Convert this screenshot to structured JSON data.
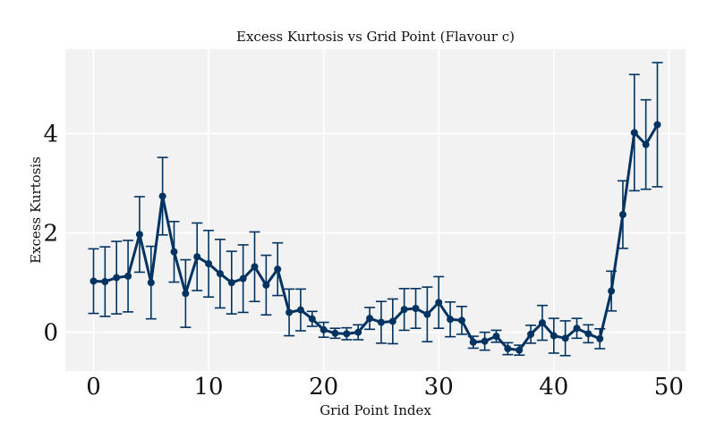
{
  "chart_data": {
    "type": "line",
    "title": "Excess Kurtosis vs Grid Point (Flavour c)",
    "xlabel": "Grid Point Index",
    "ylabel": "Excess Kurtosis",
    "xlim": [
      -2.45,
      51.45
    ],
    "ylim": [
      -0.78,
      5.7
    ],
    "xticks": [
      0,
      10,
      20,
      30,
      40,
      50
    ],
    "yticks": [
      0,
      2,
      4
    ],
    "grid": true,
    "background": "#f2f2f2",
    "line_color": "#003361",
    "series": [
      {
        "x": [
          0,
          1,
          2,
          3,
          4,
          5,
          6,
          7,
          8,
          9,
          10,
          11,
          12,
          13,
          14,
          15,
          16,
          17,
          18,
          19,
          20,
          21,
          22,
          23,
          24,
          25,
          26,
          27,
          28,
          29,
          30,
          31,
          32,
          33,
          34,
          35,
          36,
          37,
          38,
          39,
          40,
          41,
          42,
          43,
          44,
          45,
          46,
          47,
          48,
          49
        ],
        "y": [
          1.03,
          1.02,
          1.1,
          1.13,
          1.97,
          1.0,
          2.74,
          1.62,
          0.78,
          1.52,
          1.38,
          1.18,
          1.0,
          1.08,
          1.32,
          0.95,
          1.27,
          0.4,
          0.45,
          0.27,
          0.05,
          -0.02,
          -0.03,
          0.0,
          0.28,
          0.2,
          0.22,
          0.46,
          0.48,
          0.36,
          0.6,
          0.26,
          0.24,
          -0.2,
          -0.18,
          -0.08,
          -0.33,
          -0.36,
          -0.04,
          0.19,
          -0.07,
          -0.12,
          0.08,
          -0.03,
          -0.13,
          0.83,
          2.37,
          4.02,
          3.78,
          4.18
        ],
        "err": [
          0.65,
          0.7,
          0.73,
          0.72,
          0.76,
          0.73,
          0.78,
          0.61,
          0.68,
          0.68,
          0.67,
          0.69,
          0.63,
          0.68,
          0.7,
          0.6,
          0.53,
          0.47,
          0.42,
          0.15,
          0.15,
          0.1,
          0.12,
          0.15,
          0.22,
          0.42,
          0.45,
          0.42,
          0.4,
          0.55,
          0.52,
          0.35,
          0.28,
          0.12,
          0.18,
          0.12,
          0.12,
          0.1,
          0.18,
          0.35,
          0.35,
          0.35,
          0.2,
          0.18,
          0.2,
          0.4,
          0.68,
          1.17,
          0.9,
          1.25
        ]
      }
    ]
  }
}
